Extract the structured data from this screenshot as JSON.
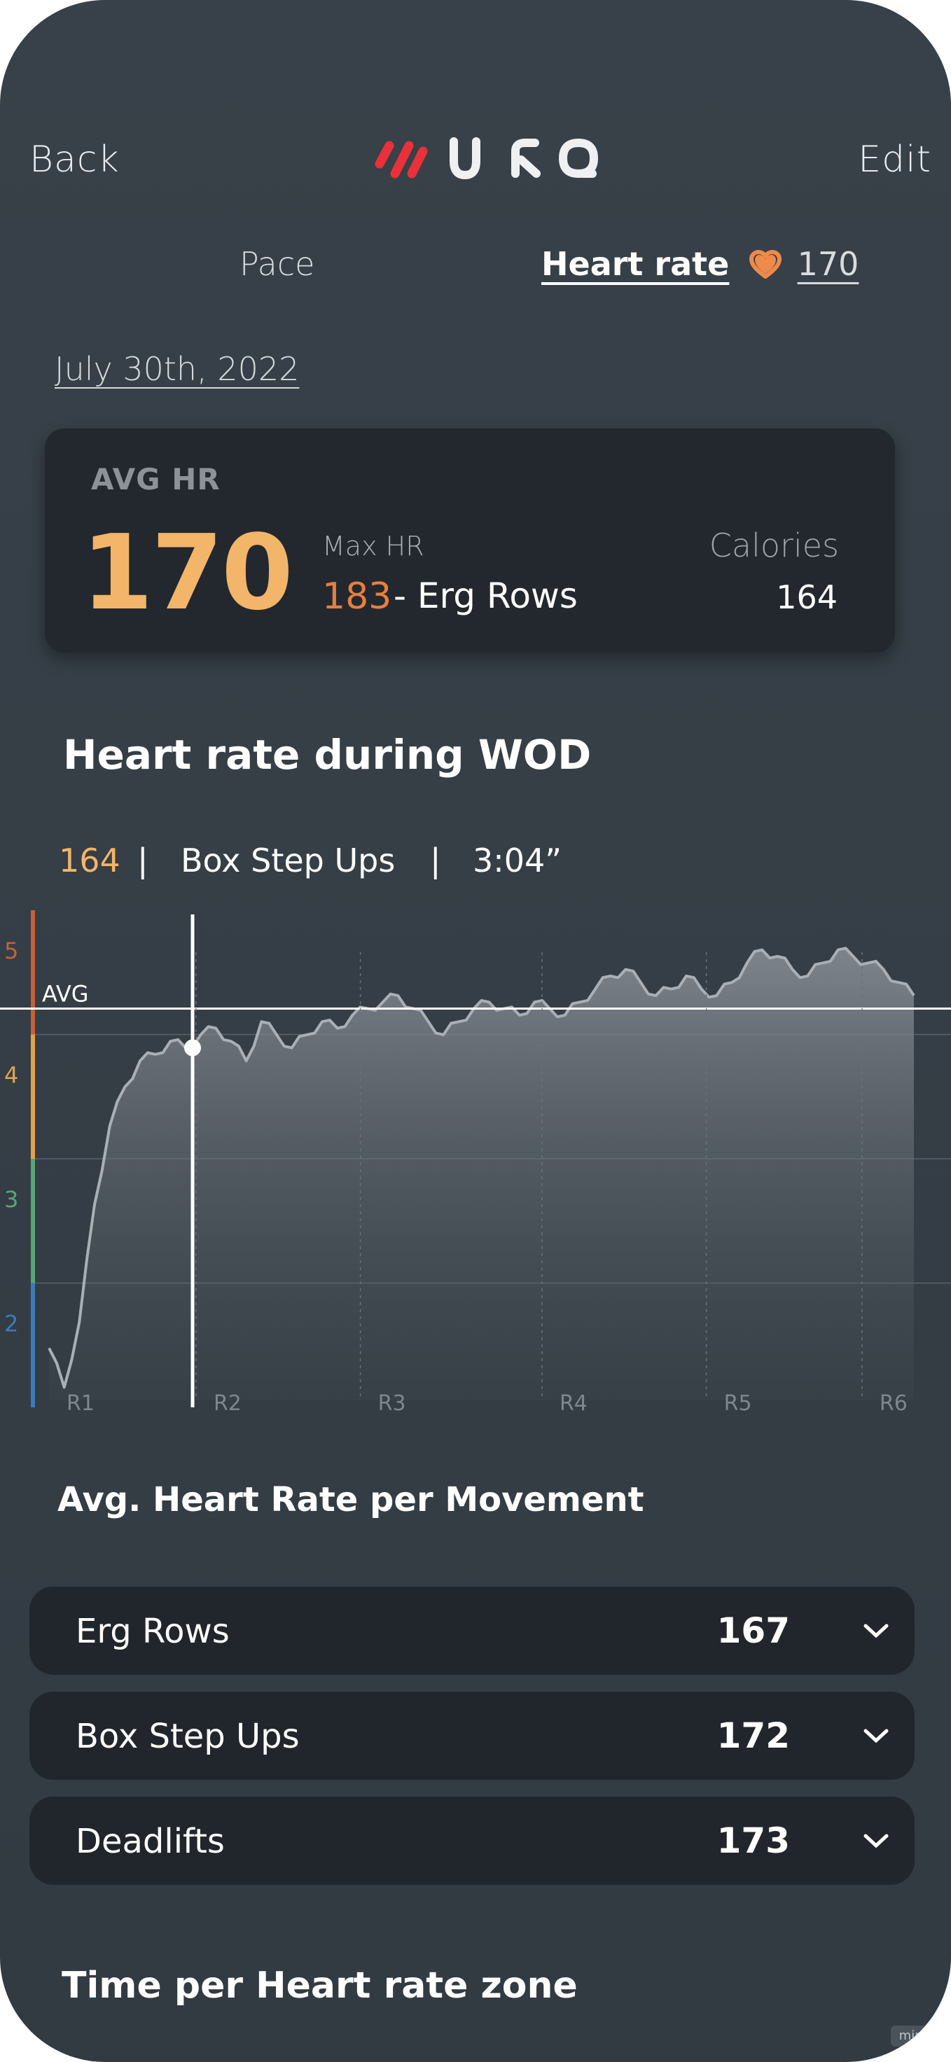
{
  "nav": {
    "back_label": "Back",
    "edit_label": "Edit",
    "logo_letters": "U R Q"
  },
  "tabs": {
    "pace": "Pace",
    "heart_rate": "Heart rate",
    "heart_rate_value": "170",
    "heart_icon": "heart-icon"
  },
  "date": "July 30th, 2022",
  "summary": {
    "avg_label": "AVG HR",
    "avg_value": "170",
    "max_label": "Max HR",
    "max_value": "183",
    "max_movement": "- Erg Rows",
    "calories_label": "Calories",
    "calories_value": "164"
  },
  "wod_chart": {
    "title": "Heart rate during WOD",
    "selection": {
      "value": "164",
      "movement": "Box Step Ups",
      "time": "3:04”",
      "sep": "|"
    },
    "avg_label": "AVG"
  },
  "chart_data": {
    "type": "area",
    "title": "Heart rate during WOD",
    "xlabel": "",
    "ylabel": "",
    "zones": [
      "5",
      "4",
      "3",
      "2"
    ],
    "zone_colors": [
      "#c2613a",
      "#e2a24c",
      "#5aa479",
      "#3c7ab8"
    ],
    "rounds": [
      "R1",
      "R2",
      "R3",
      "R4",
      "R5",
      "R6"
    ],
    "avg_hr": 170,
    "selected_point": {
      "hr": 164,
      "movement": "Box Step Ups",
      "time": "3:04”"
    },
    "series": [
      {
        "values": [
          118,
          112,
          122,
          140,
          152,
          158,
          162,
          163,
          165,
          164,
          166,
          167,
          165,
          162,
          168,
          166,
          164,
          166,
          168,
          167,
          169,
          170,
          171,
          172,
          170,
          168,
          166,
          168,
          170,
          171,
          170,
          169,
          171,
          170,
          169,
          171,
          173,
          175,
          176,
          174,
          172,
          173,
          175,
          173,
          172,
          174,
          177,
          179,
          178,
          176,
          175,
          177,
          179,
          178,
          177,
          176,
          174,
          172
        ]
      }
    ],
    "grid": true
  },
  "movements": {
    "title": "Avg. Heart Rate per Movement",
    "items": [
      {
        "name": "Erg Rows",
        "value": "167"
      },
      {
        "name": "Box Step Ups",
        "value": "172"
      },
      {
        "name": "Deadlifts",
        "value": "173"
      }
    ]
  },
  "zones_section": {
    "title": "Time per Heart rate zone"
  },
  "watermark": "miro",
  "colors": {
    "avg_orange": "#f2b569",
    "max_orange": "#ea7e3e",
    "card_bg": "#23282e",
    "bg": "#363f47"
  }
}
